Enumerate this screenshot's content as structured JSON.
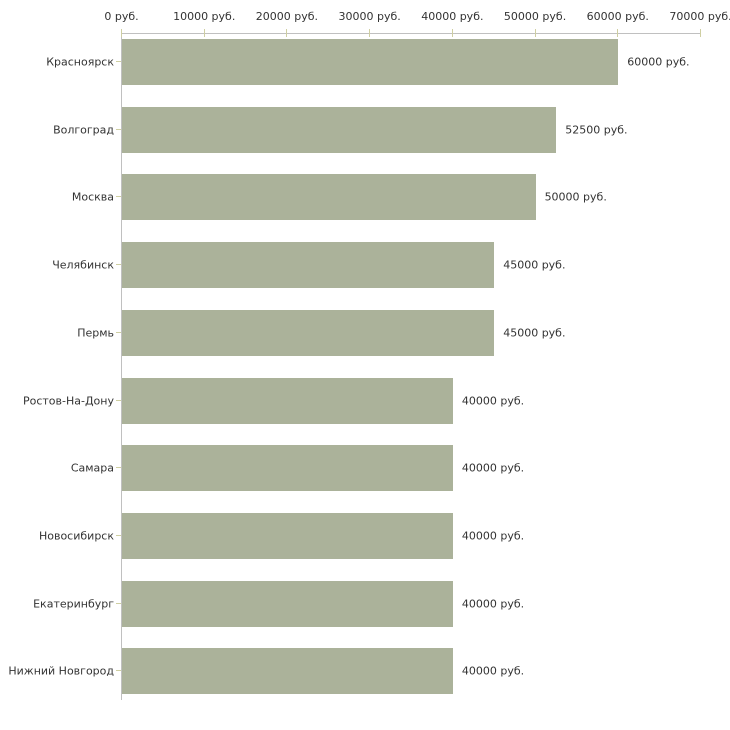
{
  "chart_data": {
    "type": "bar",
    "orientation": "horizontal",
    "title": "",
    "xlabel": "",
    "ylabel": "",
    "xlim": [
      0,
      70000
    ],
    "grid": false,
    "legend": false,
    "x_tick_labels": [
      "0 руб.",
      "10000 руб.",
      "20000 руб.",
      "30000 руб.",
      "40000 руб.",
      "50000 руб.",
      "60000 руб.",
      "70000 руб."
    ],
    "categories": [
      "Красноярск",
      "Волгоград",
      "Москва",
      "Челябинск",
      "Пермь",
      "Ростов-На-Дону",
      "Самара",
      "Новосибирск",
      "Екатеринбург",
      "Нижний Новгород"
    ],
    "values": [
      60000,
      52500,
      50000,
      45000,
      45000,
      40000,
      40000,
      40000,
      40000,
      40000
    ],
    "rows": [
      {
        "category": "Красноярск",
        "value": 60000,
        "value_label": "60000 руб."
      },
      {
        "category": "Волгоград",
        "value": 52500,
        "value_label": "52500 руб."
      },
      {
        "category": "Москва",
        "value": 50000,
        "value_label": "50000 руб."
      },
      {
        "category": "Челябинск",
        "value": 45000,
        "value_label": "45000 руб."
      },
      {
        "category": "Пермь",
        "value": 45000,
        "value_label": "45000 руб."
      },
      {
        "category": "Ростов-На-Дону",
        "value": 40000,
        "value_label": "40000 руб."
      },
      {
        "category": "Самара",
        "value": 40000,
        "value_label": "40000 руб."
      },
      {
        "category": "Новосибирск",
        "value": 40000,
        "value_label": "40000 руб."
      },
      {
        "category": "Екатеринбург",
        "value": 40000,
        "value_label": "40000 руб."
      },
      {
        "category": "Нижний Новгород",
        "value": 40000,
        "value_label": "40000 руб."
      }
    ],
    "colors": {
      "bar": "#abb29a",
      "axis_line": "#c0c0c0",
      "tick": "#cfcfa2",
      "text": "#333333",
      "background": "#ffffff"
    }
  }
}
